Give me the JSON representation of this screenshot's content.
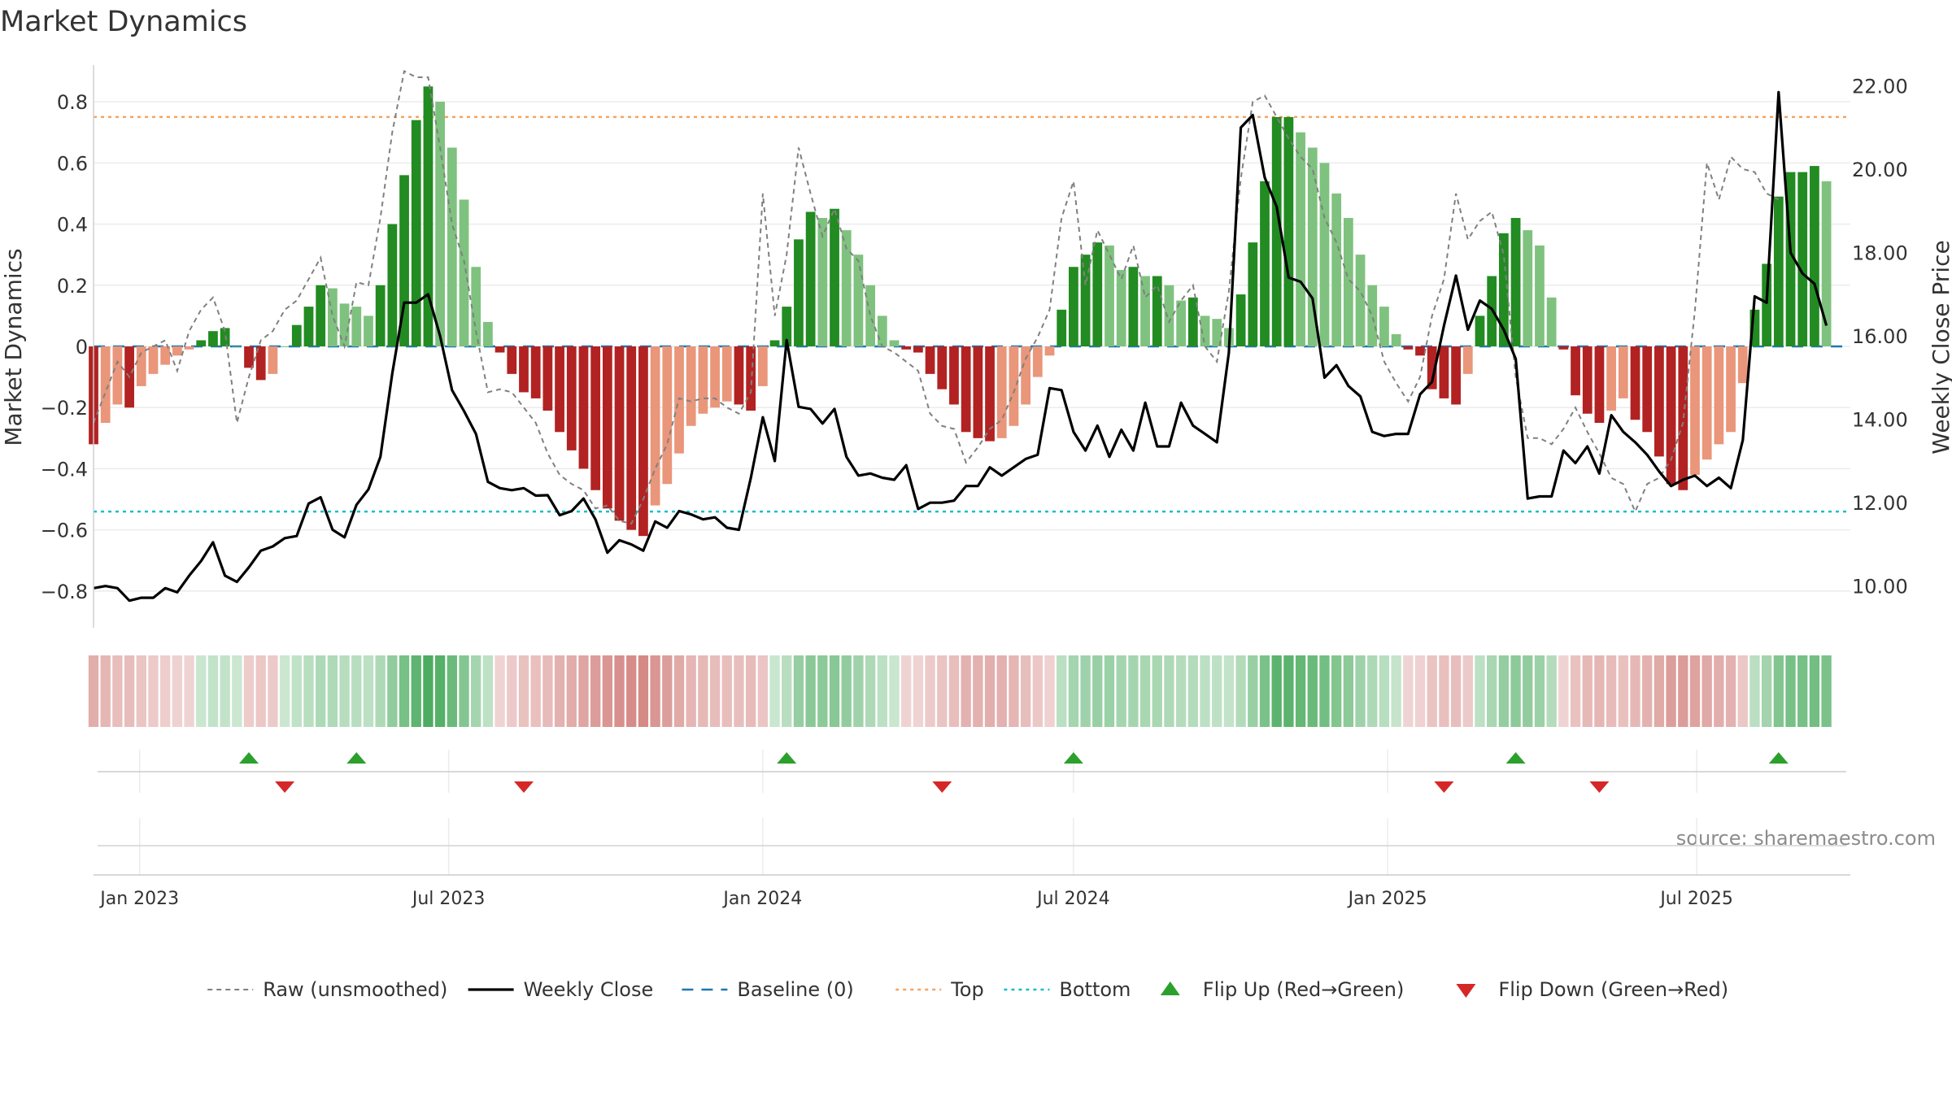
{
  "chart_data": {
    "type": "bar",
    "title": "Market Dynamics",
    "ylabel_left": "Market Dynamics",
    "ylabel_right": "Weekly Close Price",
    "source": "source: sharemaestro.com",
    "x_range": [
      "2022-12-05",
      "2025-09-29"
    ],
    "ylim_left": [
      -0.92,
      0.92
    ],
    "ylim_right": [
      9.0,
      22.5
    ],
    "yticks_left": [
      -0.8,
      -0.6,
      -0.4,
      -0.2,
      0,
      0.2,
      0.4,
      0.6,
      0.8
    ],
    "yticks_left_labels": [
      "−0.8",
      "−0.6",
      "−0.4",
      "−0.2",
      "0",
      "0.2",
      "0.4",
      "0.6",
      "0.8"
    ],
    "yticks_right": [
      10,
      12,
      14,
      16,
      18,
      20,
      22
    ],
    "yticks_right_labels": [
      "10.00",
      "12.00",
      "14.00",
      "16.00",
      "18.00",
      "20.00",
      "22.00"
    ],
    "xticks": [
      {
        "date": "2023-01-01",
        "label": "Jan 2023"
      },
      {
        "date": "2023-07-01",
        "label": "Jul 2023"
      },
      {
        "date": "2024-01-01",
        "label": "Jan 2024"
      },
      {
        "date": "2024-07-01",
        "label": "Jul 2024"
      },
      {
        "date": "2025-01-01",
        "label": "Jan 2025"
      },
      {
        "date": "2025-07-01",
        "label": "Jul 2025"
      }
    ],
    "top_level": 0.75,
    "bottom_level": -0.54,
    "colors": {
      "strong_green": "#228b22",
      "light_green": "#7fc27f",
      "strong_red": "#b22222",
      "light_red": "#e9967a",
      "raw": "#808080",
      "close": "#000000",
      "baseline": "#1f77b4",
      "top": "#f4a460",
      "bottom": "#17becf",
      "flip_up": "#2ca02c",
      "flip_down": "#d62728"
    },
    "series": [
      {
        "name": "Market Dynamics",
        "start_date": "2022-12-05",
        "interval_days": 7,
        "values": [
          -0.32,
          -0.25,
          -0.19,
          -0.2,
          -0.13,
          -0.09,
          -0.06,
          -0.03,
          -0.01,
          0.02,
          0.05,
          0.06,
          0,
          -0.07,
          -0.11,
          -0.09,
          0,
          0.07,
          0.13,
          0.2,
          0.19,
          0.14,
          0.13,
          0.1,
          0.2,
          0.4,
          0.56,
          0.74,
          0.85,
          0.8,
          0.65,
          0.48,
          0.26,
          0.08,
          -0.02,
          -0.09,
          -0.15,
          -0.17,
          -0.21,
          -0.28,
          -0.34,
          -0.4,
          -0.47,
          -0.53,
          -0.57,
          -0.6,
          -0.62,
          -0.52,
          -0.45,
          -0.35,
          -0.26,
          -0.22,
          -0.2,
          -0.18,
          -0.19,
          -0.21,
          -0.13,
          0.02,
          0.13,
          0.35,
          0.44,
          0.42,
          0.45,
          0.38,
          0.3,
          0.2,
          0.1,
          0.02,
          -0.01,
          -0.02,
          -0.09,
          -0.14,
          -0.19,
          -0.28,
          -0.3,
          -0.31,
          -0.3,
          -0.26,
          -0.19,
          -0.1,
          -0.03,
          0.12,
          0.26,
          0.3,
          0.34,
          0.33,
          0.25,
          0.26,
          0.23,
          0.23,
          0.2,
          0.15,
          0.16,
          0.1,
          0.09,
          0.06,
          0.17,
          0.34,
          0.54,
          0.75,
          0.75,
          0.7,
          0.65,
          0.6,
          0.5,
          0.42,
          0.3,
          0.2,
          0.13,
          0.04,
          -0.01,
          -0.03,
          -0.14,
          -0.17,
          -0.19,
          -0.09,
          0.1,
          0.23,
          0.37,
          0.42,
          0.38,
          0.33,
          0.16,
          -0.01,
          -0.16,
          -0.22,
          -0.25,
          -0.21,
          -0.17,
          -0.24,
          -0.28,
          -0.36,
          -0.45,
          -0.47,
          -0.42,
          -0.37,
          -0.32,
          -0.28,
          -0.12,
          0.12,
          0.27,
          0.49,
          0.57,
          0.57,
          0.59,
          0.54
        ]
      },
      {
        "name": "Raw (unsmoothed)",
        "start_date": "2022-12-05",
        "interval_days": 7,
        "values": [
          -0.25,
          -0.15,
          -0.05,
          -0.1,
          -0.02,
          0,
          0.02,
          -0.08,
          0.05,
          0.12,
          0.16,
          0.05,
          -0.25,
          -0.1,
          0.02,
          0.05,
          0.12,
          0.15,
          0.22,
          0.29,
          0.1,
          0.0,
          0.21,
          0.2,
          0.42,
          0.7,
          0.9,
          0.88,
          0.88,
          0.65,
          0.4,
          0.28,
          0.05,
          -0.15,
          -0.14,
          -0.15,
          -0.2,
          -0.25,
          -0.35,
          -0.42,
          -0.45,
          -0.47,
          -0.53,
          -0.52,
          -0.57,
          -0.58,
          -0.5,
          -0.4,
          -0.32,
          -0.17,
          -0.18,
          -0.17,
          -0.17,
          -0.2,
          -0.22,
          -0.15,
          0.5,
          0.1,
          0.3,
          0.65,
          0.5,
          0.36,
          0.45,
          0.32,
          0.28,
          0.1,
          0.0,
          -0.02,
          -0.05,
          -0.08,
          -0.22,
          -0.26,
          -0.27,
          -0.38,
          -0.33,
          -0.27,
          -0.24,
          -0.15,
          -0.04,
          0.03,
          0.12,
          0.42,
          0.54,
          0.2,
          0.38,
          0.3,
          0.22,
          0.33,
          0.16,
          0.2,
          0.08,
          0.15,
          0.2,
          0.0,
          -0.05,
          0.18,
          0.55,
          0.8,
          0.82,
          0.75,
          0.68,
          0.62,
          0.58,
          0.42,
          0.34,
          0.22,
          0.18,
          0.1,
          -0.05,
          -0.12,
          -0.18,
          -0.1,
          0.1,
          0.22,
          0.5,
          0.35,
          0.41,
          0.44,
          0.3,
          -0.1,
          -0.3,
          -0.3,
          -0.32,
          -0.27,
          -0.2,
          -0.28,
          -0.35,
          -0.43,
          -0.45,
          -0.54,
          -0.45,
          -0.43,
          -0.37,
          -0.25,
          0.12,
          0.6,
          0.48,
          0.62,
          0.58,
          0.57,
          0.5,
          0.48
        ]
      },
      {
        "name": "Weekly Close",
        "start_date": "2022-12-05",
        "interval_days": 7,
        "values": [
          9.95,
          10.0,
          9.95,
          9.65,
          9.72,
          9.72,
          9.95,
          9.85,
          10.25,
          10.6,
          11.05,
          10.25,
          10.1,
          10.45,
          10.85,
          10.95,
          11.15,
          11.2,
          11.98,
          12.13,
          11.35,
          11.17,
          11.95,
          12.32,
          13.1,
          15.1,
          16.8,
          16.8,
          17.0,
          16.0,
          14.7,
          14.2,
          13.65,
          12.5,
          12.35,
          12.3,
          12.35,
          12.17,
          12.18,
          11.7,
          11.8,
          12.1,
          11.6,
          10.8,
          11.1,
          11.0,
          10.85,
          11.55,
          11.4,
          11.8,
          11.72,
          11.6,
          11.65,
          11.4,
          11.35,
          12.6,
          14.05,
          13.0,
          15.9,
          14.3,
          14.25,
          13.9,
          14.25,
          13.1,
          12.65,
          12.7,
          12.6,
          12.55,
          12.9,
          11.85,
          12.0,
          12.0,
          12.05,
          12.4,
          12.4,
          12.85,
          12.65,
          12.85,
          13.05,
          13.15,
          14.75,
          14.7,
          13.7,
          13.25,
          13.85,
          13.1,
          13.75,
          13.25,
          14.4,
          13.35,
          13.35,
          14.4,
          13.85,
          13.65,
          13.45,
          15.6,
          21.0,
          21.3,
          19.8,
          19.1,
          17.4,
          17.3,
          16.9,
          15.0,
          15.3,
          14.8,
          14.55,
          13.7,
          13.6,
          13.65,
          13.65,
          14.6,
          14.9,
          16.25,
          17.45,
          16.15,
          16.85,
          16.65,
          16.15,
          15.45,
          12.1,
          12.15,
          12.15,
          13.25,
          12.95,
          13.35,
          12.7,
          14.1,
          13.7,
          13.45,
          13.15,
          12.75,
          12.4,
          12.55,
          12.65,
          12.4,
          12.6,
          12.35,
          13.5,
          16.95,
          16.8,
          21.85,
          18.0,
          17.5,
          17.25,
          16.25
        ]
      }
    ],
    "flips_up": [
      "2023-03-06",
      "2023-05-08",
      "2024-01-15",
      "2024-07-01",
      "2025-03-17",
      "2025-08-18"
    ],
    "flips_down": [
      "2023-03-27",
      "2023-08-14",
      "2024-04-15",
      "2025-02-03",
      "2025-05-05"
    ],
    "legend": {
      "placement": "bottom-center",
      "items": [
        {
          "label": "Raw (unsmoothed)",
          "style": "dash",
          "color": "#808080"
        },
        {
          "label": "Weekly Close",
          "style": "solid",
          "color": "#000000"
        },
        {
          "label": "Baseline (0)",
          "style": "longdash",
          "color": "#1f77b4"
        },
        {
          "label": "Top",
          "style": "dot",
          "color": "#f4a460"
        },
        {
          "label": "Bottom",
          "style": "dot",
          "color": "#17becf"
        },
        {
          "label": "Flip Up (Red→Green)",
          "style": "triangle-up",
          "color": "#2ca02c"
        },
        {
          "label": "Flip Down (Green→Red)",
          "style": "triangle-down",
          "color": "#d62728"
        }
      ]
    }
  }
}
